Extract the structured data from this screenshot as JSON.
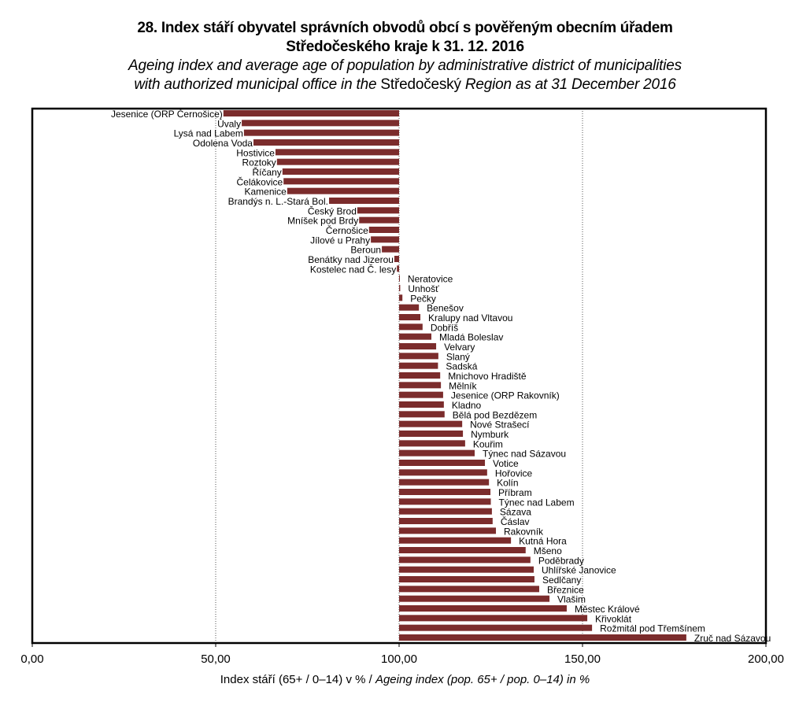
{
  "chart_data": {
    "type": "bar",
    "orientation": "horizontal",
    "title": "28. Index stáří obyvatel správních obvodů obcí s pověřeným obecním úřadem",
    "title_line2": "Středočeského kraje k 31. 12. 2016",
    "subtitle_pre": "Ageing index and average age of population by administrative district of municipalities",
    "subtitle2_a": "with  authorized municipal office in the ",
    "subtitle2_region": "Středočeský",
    "subtitle2_b": " Region as at 31 December 2016",
    "xlabel_cz": "Index stáří (65+ /  0–14)  v % / ",
    "xlabel_en": "Ageing  index (pop. 65+ / pop. 0–14)  in  %",
    "xlim": [
      0,
      200
    ],
    "base_value": 100,
    "grid": "vertical-dotted",
    "xticks": [
      0,
      50,
      100,
      150,
      200
    ],
    "xtick_labels": [
      "0,00",
      "50,00",
      "100,00",
      "150,00",
      "200,00"
    ],
    "bar_color": "#7B2C2C",
    "categories": [
      "Jesenice (ORP Černošice)",
      "Úvaly",
      "Lysá nad Labem",
      "Odolena Voda",
      "Hostivice",
      "Roztoky",
      "Říčany",
      "Čelákovice",
      "Kamenice",
      "Brandýs n. L.-Stará Bol.",
      "Český Brod",
      "Mníšek pod Brdy",
      "Černošice",
      "Jílové  u Prahy",
      "Beroun",
      "Benátky nad Jizerou",
      "Kostelec nad Č. lesy",
      "Neratovice",
      "Unhošť",
      "Pečky",
      "Benešov",
      "Kralupy nad Vltavou",
      "Dobříš",
      "Mladá Boleslav",
      "Velvary",
      "Slaný",
      "Sadská",
      "Mnichovo Hradiště",
      "Mělník",
      "Jesenice (ORP Rakovník)",
      "Kladno",
      "Bělá pod Bezdězem",
      "Nové  Strašecí",
      "Nymburk",
      "Kouřim",
      "Týnec nad Sázavou",
      "Votice",
      "Hořovice",
      "Kolín",
      "Příbram",
      "Týnec nad Labem",
      "Sázava",
      "Čáslav",
      "Rakovník",
      "Kutná Hora",
      "Mšeno",
      "Poděbrady",
      "Uhlířské Janovice",
      "Sedlčany",
      "Březnice",
      "Vlašim",
      "Městec Králové",
      "Křivoklát",
      "Rožmitál pod Třemšínem",
      "Zruč nad Sázavou"
    ],
    "values": [
      52.1,
      57.1,
      57.7,
      60.3,
      66.3,
      66.7,
      68.2,
      68.5,
      69.5,
      80.9,
      88.6,
      89.1,
      91.8,
      92.3,
      95.3,
      98.7,
      99.4,
      100.2,
      100.3,
      100.9,
      105.4,
      105.8,
      106.4,
      108.8,
      110.1,
      110.7,
      110.6,
      111.2,
      111.4,
      112.0,
      112.2,
      112.4,
      117.2,
      117.4,
      118.0,
      120.6,
      123.4,
      124.0,
      124.5,
      124.9,
      125.0,
      125.3,
      125.5,
      126.4,
      130.5,
      134.5,
      135.8,
      136.7,
      136.9,
      138.2,
      141.0,
      145.7,
      151.3,
      152.6,
      178.3
    ]
  }
}
